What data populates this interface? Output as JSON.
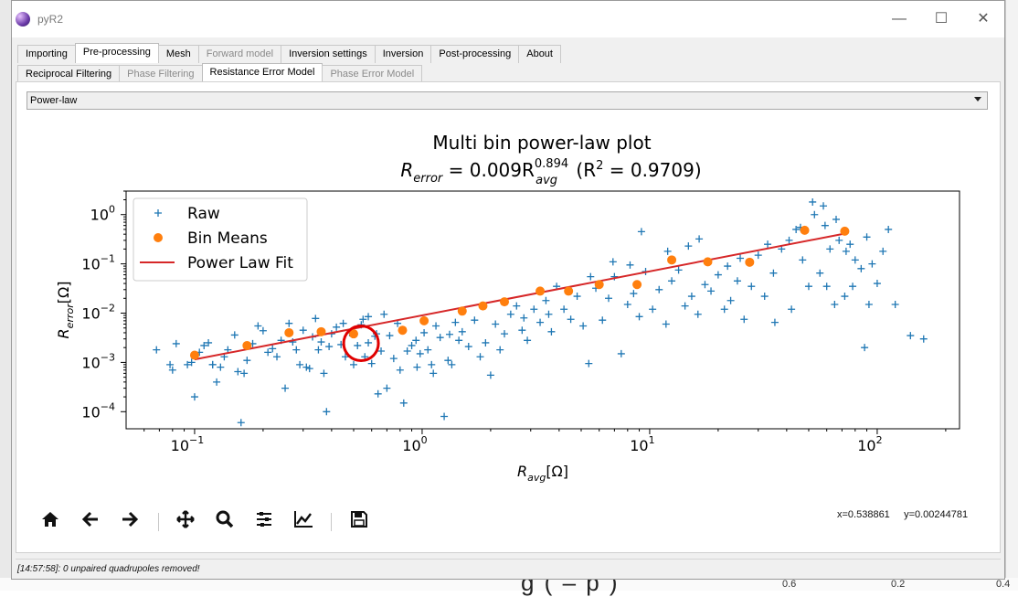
{
  "window": {
    "title": "pyR2",
    "minimize": "—",
    "maximize": "☐",
    "close": "✕"
  },
  "main_tabs": [
    {
      "label": "Importing",
      "state": "normal"
    },
    {
      "label": "Pre-processing",
      "state": "active"
    },
    {
      "label": "Mesh",
      "state": "normal"
    },
    {
      "label": "Forward model",
      "state": "disabled"
    },
    {
      "label": "Inversion settings",
      "state": "normal"
    },
    {
      "label": "Inversion",
      "state": "normal"
    },
    {
      "label": "Post-processing",
      "state": "normal"
    },
    {
      "label": "About",
      "state": "normal"
    }
  ],
  "sub_tabs": [
    {
      "label": "Reciprocal Filtering",
      "state": "normal"
    },
    {
      "label": "Phase Filtering",
      "state": "disabled"
    },
    {
      "label": "Resistance Error Model",
      "state": "active"
    },
    {
      "label": "Phase Error Model",
      "state": "disabled"
    }
  ],
  "model_select": {
    "value": "Power-law"
  },
  "toolbar": {
    "home": "home-icon",
    "back": "back-arrow-icon",
    "forward": "forward-arrow-icon",
    "pan": "pan-icon",
    "zoom": "zoom-icon",
    "configure": "configure-subplots-icon",
    "edit": "edit-axis-icon",
    "save": "save-icon",
    "coords": "x=0.538861     y=0.00244781"
  },
  "status": {
    "text": "[14:57:58]: 0 unpaired quadrupoles removed!"
  },
  "background": {
    "big_text": "g  (  –  p )",
    "num1": "0.6",
    "num2": "0.2",
    "num3": "0.4"
  },
  "chart_data": {
    "type": "scatter",
    "title": "Multi bin power-law plot",
    "subtitle_parts": {
      "lhs": "R",
      "lhs_sub": "error",
      "eq": " = 0.009R",
      "sup": "0.894",
      "rhs_sub": "avg",
      "r2": " (R",
      "r2_sup": "2",
      "r2_val": " = 0.9709)"
    },
    "xlabel": {
      "base": "R",
      "sub": "avg",
      "unit": "[Ω]"
    },
    "ylabel": {
      "base": "R",
      "sub": "error",
      "unit": "[Ω]"
    },
    "xscale": "log",
    "yscale": "log",
    "xlim": [
      0.05,
      230
    ],
    "ylim": [
      4.5e-05,
      3
    ],
    "xticks": [
      {
        "v": 0.1,
        "base": "10",
        "exp": "−1"
      },
      {
        "v": 1,
        "base": "10",
        "exp": "0"
      },
      {
        "v": 10,
        "base": "10",
        "exp": "1"
      },
      {
        "v": 100,
        "base": "10",
        "exp": "2"
      }
    ],
    "yticks": [
      {
        "v": 0.0001,
        "base": "10",
        "exp": "−4"
      },
      {
        "v": 0.001,
        "base": "10",
        "exp": "−3"
      },
      {
        "v": 0.01,
        "base": "10",
        "exp": "−2"
      },
      {
        "v": 0.1,
        "base": "10",
        "exp": "−1"
      },
      {
        "v": 1,
        "base": "10",
        "exp": "0"
      }
    ],
    "legend": {
      "position": "upper-left",
      "entries": [
        "Raw",
        "Bin Means",
        "Power Law Fit"
      ]
    },
    "colors": {
      "raw": "#1f77b4",
      "bin": "#ff7f0e",
      "fit": "#d62728",
      "highlight": "#e00000"
    },
    "fit": {
      "a": 0.009,
      "b": 0.894,
      "x_range": [
        0.1,
        72
      ]
    },
    "highlight": {
      "x": 0.538861,
      "y": 0.00244781
    },
    "bin_means": [
      [
        0.1,
        0.0014
      ],
      [
        0.17,
        0.0022
      ],
      [
        0.26,
        0.004
      ],
      [
        0.36,
        0.0042
      ],
      [
        0.5,
        0.0038
      ],
      [
        0.82,
        0.0045
      ],
      [
        1.02,
        0.007
      ],
      [
        1.5,
        0.011
      ],
      [
        1.85,
        0.014
      ],
      [
        2.3,
        0.017
      ],
      [
        3.3,
        0.028
      ],
      [
        4.4,
        0.028
      ],
      [
        6,
        0.038
      ],
      [
        8.8,
        0.038
      ],
      [
        12.5,
        0.12
      ],
      [
        18,
        0.11
      ],
      [
        27.5,
        0.108
      ],
      [
        48,
        0.48
      ],
      [
        72,
        0.46
      ]
    ],
    "raw": [
      [
        0.068,
        0.0018
      ],
      [
        0.078,
        0.0009
      ],
      [
        0.08,
        0.0007
      ],
      [
        0.083,
        0.0024
      ],
      [
        0.093,
        0.0009
      ],
      [
        0.097,
        0.001
      ],
      [
        0.1,
        0.0002
      ],
      [
        0.105,
        0.0016
      ],
      [
        0.11,
        0.0022
      ],
      [
        0.115,
        0.0025
      ],
      [
        0.12,
        0.0009
      ],
      [
        0.125,
        0.0004
      ],
      [
        0.13,
        0.0008
      ],
      [
        0.135,
        0.0013
      ],
      [
        0.14,
        0.0018
      ],
      [
        0.15,
        0.0036
      ],
      [
        0.155,
        0.00065
      ],
      [
        0.16,
        6e-05
      ],
      [
        0.165,
        0.0006
      ],
      [
        0.17,
        0.0011
      ],
      [
        0.18,
        0.0024
      ],
      [
        0.19,
        0.0055
      ],
      [
        0.2,
        0.0044
      ],
      [
        0.21,
        0.0016
      ],
      [
        0.22,
        0.0019
      ],
      [
        0.23,
        0.0013
      ],
      [
        0.24,
        0.0028
      ],
      [
        0.25,
        0.0003
      ],
      [
        0.26,
        0.0062
      ],
      [
        0.27,
        0.0026
      ],
      [
        0.28,
        0.0018
      ],
      [
        0.29,
        0.0009
      ],
      [
        0.3,
        0.0045
      ],
      [
        0.31,
        0.0008
      ],
      [
        0.32,
        0.00075
      ],
      [
        0.33,
        0.0033
      ],
      [
        0.34,
        0.0078
      ],
      [
        0.35,
        0.0018
      ],
      [
        0.36,
        0.0026
      ],
      [
        0.37,
        0.0006
      ],
      [
        0.38,
        0.0001
      ],
      [
        0.39,
        0.0021
      ],
      [
        0.4,
        0.0038
      ],
      [
        0.42,
        0.0052
      ],
      [
        0.44,
        0.0023
      ],
      [
        0.46,
        0.0013
      ],
      [
        0.48,
        0.004
      ],
      [
        0.5,
        0.0009
      ],
      [
        0.52,
        0.0022
      ],
      [
        0.54,
        0.0058
      ],
      [
        0.55,
        0.0075
      ],
      [
        0.56,
        0.0013
      ],
      [
        0.58,
        0.0025
      ],
      [
        0.6,
        0.00095
      ],
      [
        0.62,
        0.0034
      ],
      [
        0.64,
        0.00023
      ],
      [
        0.66,
        0.0017
      ],
      [
        0.68,
        0.0095
      ],
      [
        0.7,
        0.0003
      ],
      [
        0.72,
        0.0035
      ],
      [
        0.75,
        0.0012
      ],
      [
        0.78,
        0.0062
      ],
      [
        0.8,
        0.0007
      ],
      [
        0.83,
        0.00015
      ],
      [
        0.86,
        0.0017
      ],
      [
        0.9,
        0.0022
      ],
      [
        0.94,
        0.0028
      ],
      [
        0.98,
        0.0015
      ],
      [
        1.02,
        0.004
      ],
      [
        1.06,
        0.0018
      ],
      [
        1.1,
        0.0009
      ],
      [
        1.15,
        0.0055
      ],
      [
        1.2,
        0.0032
      ],
      [
        1.25,
        8e-05
      ],
      [
        1.3,
        0.0011
      ],
      [
        1.35,
        0.0009
      ],
      [
        1.4,
        0.0065
      ],
      [
        1.45,
        0.0028
      ],
      [
        1.5,
        0.0042
      ],
      [
        1.6,
        0.0021
      ],
      [
        1.7,
        0.0072
      ],
      [
        1.8,
        0.0013
      ],
      [
        1.9,
        0.0025
      ],
      [
        2.0,
        0.00055
      ],
      [
        2.1,
        0.006
      ],
      [
        2.2,
        0.0018
      ],
      [
        2.3,
        0.0038
      ],
      [
        2.45,
        0.0095
      ],
      [
        2.6,
        0.014
      ],
      [
        2.75,
        0.0045
      ],
      [
        2.9,
        0.0028
      ],
      [
        3.1,
        0.012
      ],
      [
        3.3,
        0.0065
      ],
      [
        3.5,
        0.018
      ],
      [
        3.7,
        0.0042
      ],
      [
        3.9,
        0.035
      ],
      [
        4.2,
        0.012
      ],
      [
        4.5,
        0.0075
      ],
      [
        4.8,
        0.022
      ],
      [
        5.1,
        0.0055
      ],
      [
        5.4,
        0.00095
      ],
      [
        5.8,
        0.032
      ],
      [
        6.2,
        0.0072
      ],
      [
        6.6,
        0.02
      ],
      [
        7.0,
        0.055
      ],
      [
        7.5,
        0.0015
      ],
      [
        8.0,
        0.015
      ],
      [
        8.5,
        0.025
      ],
      [
        9.0,
        0.0085
      ],
      [
        9.6,
        0.07
      ],
      [
        10.3,
        0.012
      ],
      [
        11,
        0.03
      ],
      [
        11.8,
        0.006
      ],
      [
        12.5,
        0.045
      ],
      [
        13.4,
        0.075
      ],
      [
        14.3,
        0.014
      ],
      [
        15.3,
        0.022
      ],
      [
        16.3,
        0.0095
      ],
      [
        17.5,
        0.038
      ],
      [
        18.6,
        0.028
      ],
      [
        20,
        0.06
      ],
      [
        21.3,
        0.012
      ],
      [
        22.7,
        0.018
      ],
      [
        24.3,
        0.045
      ],
      [
        26,
        0.0075
      ],
      [
        28,
        0.035
      ],
      [
        30,
        0.15
      ],
      [
        32,
        0.022
      ],
      [
        35,
        0.065
      ],
      [
        38,
        0.2
      ],
      [
        41,
        0.3
      ],
      [
        44,
        0.5
      ],
      [
        47,
        0.12
      ],
      [
        50,
        0.035
      ],
      [
        53,
        1.0
      ],
      [
        56,
        0.065
      ],
      [
        59,
        0.6
      ],
      [
        62,
        0.2
      ],
      [
        65,
        0.015
      ],
      [
        68,
        0.3
      ],
      [
        72,
        0.022
      ],
      [
        76,
        0.25
      ],
      [
        80,
        0.12
      ],
      [
        85,
        0.08
      ],
      [
        90,
        0.35
      ],
      [
        95,
        0.1
      ],
      [
        100,
        0.04
      ],
      [
        106,
        0.18
      ],
      [
        112,
        0.5
      ],
      [
        120,
        0.015
      ],
      [
        140,
        0.0035
      ],
      [
        160,
        0.003
      ],
      [
        35.5,
        0.0065
      ],
      [
        42,
        0.012
      ],
      [
        58,
        1.5
      ],
      [
        66,
        0.8
      ],
      [
        78,
        0.035
      ],
      [
        88,
        0.002
      ],
      [
        0.12,
        0.0009
      ],
      [
        0.45,
        0.0062
      ],
      [
        0.58,
        0.0085
      ],
      [
        0.63,
        0.0038
      ],
      [
        0.95,
        0.0008
      ],
      [
        1.12,
        0.0006
      ],
      [
        1.32,
        0.0037
      ],
      [
        2.8,
        0.008
      ],
      [
        3.6,
        0.0095
      ],
      [
        5.5,
        0.055
      ],
      [
        6.9,
        0.11
      ],
      [
        8.2,
        0.095
      ],
      [
        9.2,
        0.45
      ],
      [
        12,
        0.18
      ],
      [
        14.8,
        0.23
      ],
      [
        16.5,
        0.32
      ],
      [
        22,
        0.09
      ],
      [
        25,
        0.13
      ],
      [
        33,
        0.25
      ],
      [
        46,
        0.55
      ],
      [
        52,
        1.8
      ],
      [
        60,
        0.035
      ],
      [
        73,
        0.18
      ],
      [
        92,
        0.015
      ]
    ]
  }
}
